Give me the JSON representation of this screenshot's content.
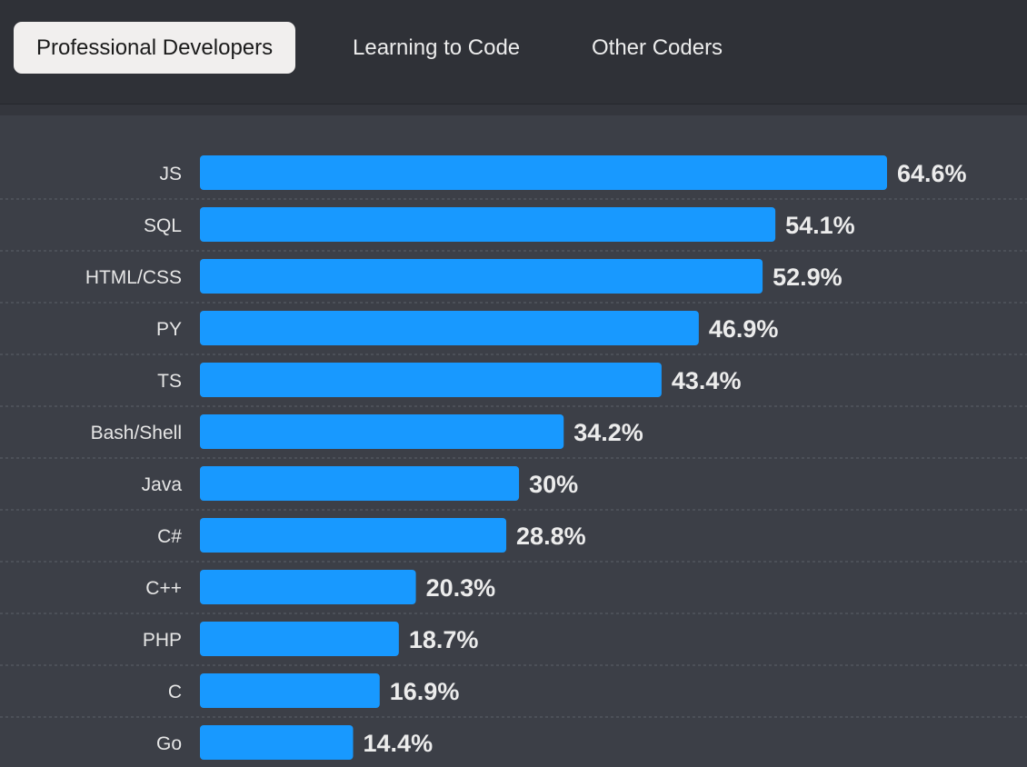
{
  "tabs": [
    {
      "label": "Professional Developers",
      "active": true
    },
    {
      "label": "Learning to Code",
      "active": false
    },
    {
      "label": "Other Coders",
      "active": false
    }
  ],
  "colors": {
    "bar": "#1899ff",
    "background": "#3c3f47",
    "tabbar": "#2f3137",
    "gridline": "#5d6068"
  },
  "chart_data": {
    "type": "bar",
    "orientation": "horizontal",
    "title": "",
    "xlabel": "",
    "ylabel": "",
    "value_suffix": "%",
    "grid": false,
    "categories": [
      "JS",
      "SQL",
      "HTML/CSS",
      "PY",
      "TS",
      "Bash/Shell",
      "Java",
      "C#",
      "C++",
      "PHP",
      "C",
      "Go"
    ],
    "values": [
      64.6,
      54.1,
      52.9,
      46.9,
      43.4,
      34.2,
      30,
      28.8,
      20.3,
      18.7,
      16.9,
      14.4
    ],
    "value_labels": [
      "64.6%",
      "54.1%",
      "52.9%",
      "46.9%",
      "43.4%",
      "34.2%",
      "30%",
      "28.8%",
      "20.3%",
      "18.7%",
      "16.9%",
      "14.4%"
    ]
  }
}
